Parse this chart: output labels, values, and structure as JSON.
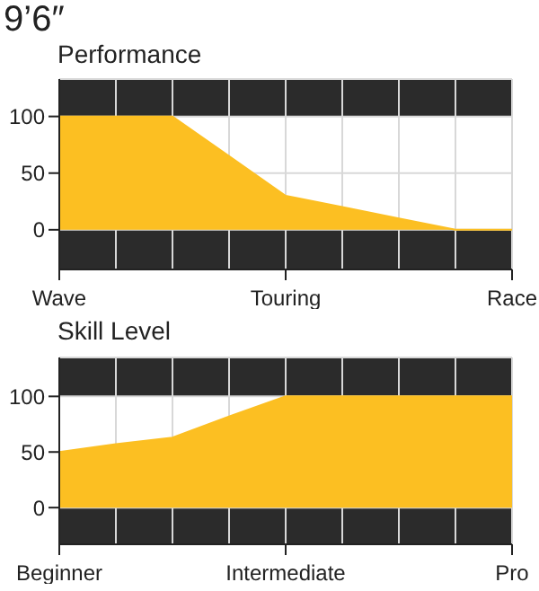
{
  "chart_data": [
    {
      "type": "area",
      "title": "9’6″",
      "subtitle": "Performance",
      "categories": [
        "Wave",
        null,
        null,
        null,
        "Touring",
        null,
        null,
        null,
        "Race"
      ],
      "values": [
        100,
        100,
        100,
        65,
        30,
        20,
        10,
        0,
        0
      ],
      "color": "#fcbf22",
      "ylim": [
        -35,
        133
      ],
      "yticks": [
        0,
        50,
        100
      ],
      "grid": true
    },
    {
      "type": "area",
      "subtitle": "Skill Level",
      "categories": [
        "Beginner",
        null,
        null,
        null,
        "Intermediate",
        null,
        null,
        null,
        "Pro"
      ],
      "values": [
        50,
        57,
        63,
        82,
        100,
        100,
        100,
        100,
        100
      ],
      "color": "#fcbf22",
      "ylim": [
        -33,
        135
      ],
      "yticks": [
        0,
        50,
        100
      ],
      "grid": true
    }
  ]
}
